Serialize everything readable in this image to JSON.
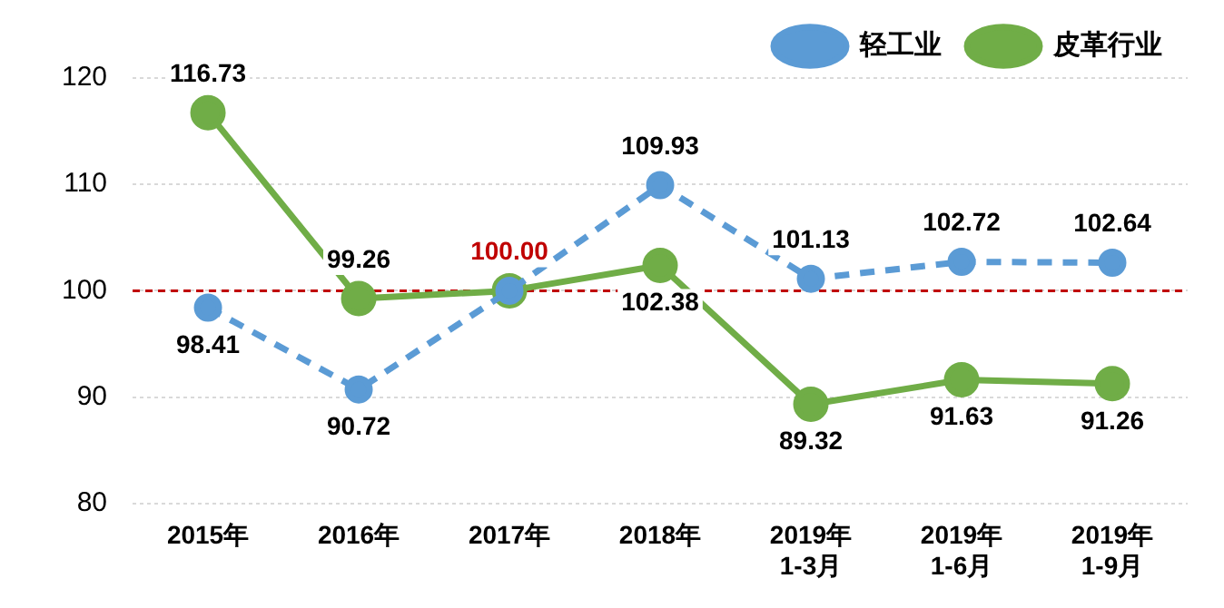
{
  "chart_data": {
    "type": "line",
    "categories": [
      "2015年",
      "2016年",
      "2017年",
      "2018年",
      "2019年\n1-3月",
      "2019年\n1-6月",
      "2019年\n1-9月"
    ],
    "series": [
      {
        "name": "轻工业",
        "color": "#5b9bd5",
        "line_style": "dashed",
        "values": [
          98.41,
          90.72,
          100.0,
          109.93,
          101.13,
          102.72,
          102.64
        ],
        "value_labels": [
          "98.41",
          "90.72",
          "100.00",
          "109.93",
          "101.13",
          "102.72",
          "102.64"
        ]
      },
      {
        "name": "皮革行业",
        "color": "#70ad47",
        "line_style": "solid",
        "values": [
          116.73,
          99.26,
          100.0,
          102.38,
          89.32,
          91.63,
          91.26
        ],
        "value_labels": [
          "116.73",
          "99.26",
          null,
          "102.38",
          "89.32",
          "91.63",
          "91.26"
        ]
      }
    ],
    "ylim": [
      80,
      120
    ],
    "yticks": [
      80,
      90,
      100,
      110,
      120
    ],
    "grid": "y",
    "legend": "top right",
    "marker": "circle",
    "ref_lines": [
      {
        "axis": "y",
        "value": 100,
        "color": "#c00000",
        "line_style": "dashed"
      }
    ]
  }
}
